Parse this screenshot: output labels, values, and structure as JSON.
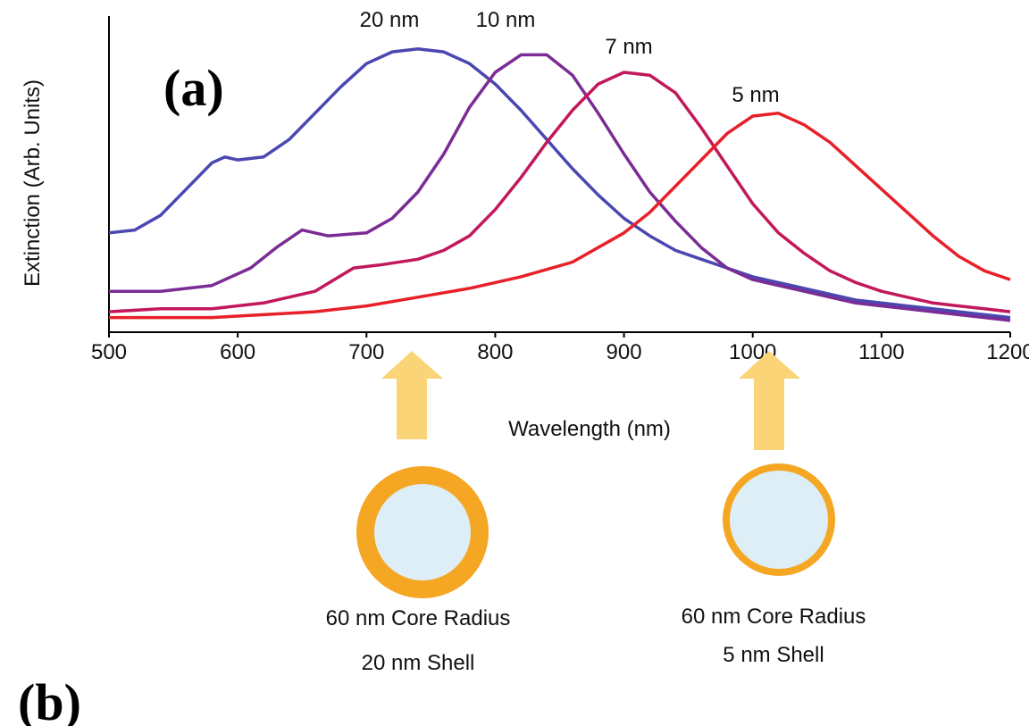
{
  "figure": {
    "panel_a_label": "(a)",
    "panel_b_label": "(b)",
    "arrow_color": "#FAD477",
    "shell_color": "#F5A623",
    "core_color": "#DDEEF7"
  },
  "chart_data": {
    "type": "line",
    "xlabel": "Wavelength (nm)",
    "ylabel": "Extinction (Arb. Units)",
    "xlim": [
      500,
      1200
    ],
    "ylim": [
      0,
      1
    ],
    "x_ticks": [
      500,
      600,
      700,
      800,
      900,
      1000,
      1100,
      1200
    ],
    "grid": false,
    "series": [
      {
        "name": "20 nm",
        "color": "#4A47B0",
        "x": [
          500,
          520,
          540,
          560,
          580,
          590,
          600,
          620,
          640,
          660,
          680,
          700,
          720,
          740,
          760,
          780,
          800,
          820,
          840,
          860,
          880,
          900,
          920,
          940,
          960,
          980,
          1000,
          1020,
          1040,
          1060,
          1080,
          1100,
          1120,
          1140,
          1160,
          1180,
          1200
        ],
        "y": [
          0.34,
          0.35,
          0.4,
          0.49,
          0.58,
          0.6,
          0.59,
          0.6,
          0.66,
          0.75,
          0.84,
          0.92,
          0.96,
          0.97,
          0.96,
          0.92,
          0.85,
          0.76,
          0.66,
          0.56,
          0.47,
          0.39,
          0.33,
          0.28,
          0.25,
          0.22,
          0.19,
          0.17,
          0.15,
          0.13,
          0.11,
          0.1,
          0.09,
          0.08,
          0.07,
          0.06,
          0.05
        ]
      },
      {
        "name": "10 nm",
        "color": "#7B2C94",
        "x": [
          500,
          540,
          580,
          610,
          630,
          650,
          670,
          700,
          720,
          740,
          760,
          780,
          800,
          820,
          840,
          860,
          880,
          900,
          920,
          940,
          960,
          980,
          1000,
          1020,
          1040,
          1060,
          1080,
          1100,
          1120,
          1140,
          1160,
          1180,
          1200
        ],
        "y": [
          0.14,
          0.14,
          0.16,
          0.22,
          0.29,
          0.35,
          0.33,
          0.34,
          0.39,
          0.48,
          0.61,
          0.77,
          0.89,
          0.95,
          0.95,
          0.88,
          0.75,
          0.61,
          0.48,
          0.38,
          0.29,
          0.22,
          0.18,
          0.16,
          0.14,
          0.12,
          0.1,
          0.09,
          0.08,
          0.07,
          0.06,
          0.05,
          0.04
        ]
      },
      {
        "name": "7 nm",
        "color": "#C2185B",
        "x": [
          500,
          540,
          580,
          620,
          660,
          690,
          710,
          740,
          760,
          780,
          800,
          820,
          840,
          860,
          880,
          900,
          920,
          940,
          960,
          980,
          1000,
          1020,
          1040,
          1060,
          1080,
          1100,
          1120,
          1140,
          1160,
          1180,
          1200
        ],
        "y": [
          0.07,
          0.08,
          0.08,
          0.1,
          0.14,
          0.22,
          0.23,
          0.25,
          0.28,
          0.33,
          0.42,
          0.53,
          0.65,
          0.76,
          0.85,
          0.89,
          0.88,
          0.82,
          0.7,
          0.57,
          0.44,
          0.34,
          0.27,
          0.21,
          0.17,
          0.14,
          0.12,
          0.1,
          0.09,
          0.08,
          0.07
        ]
      },
      {
        "name": "5 nm",
        "color": "#E8202A",
        "x": [
          500,
          540,
          580,
          620,
          660,
          700,
          740,
          780,
          820,
          860,
          880,
          900,
          920,
          940,
          960,
          980,
          1000,
          1020,
          1040,
          1060,
          1080,
          1100,
          1120,
          1140,
          1160,
          1180,
          1200
        ],
        "y": [
          0.05,
          0.05,
          0.05,
          0.06,
          0.07,
          0.09,
          0.12,
          0.15,
          0.19,
          0.24,
          0.29,
          0.34,
          0.41,
          0.5,
          0.59,
          0.68,
          0.74,
          0.75,
          0.71,
          0.65,
          0.57,
          0.49,
          0.41,
          0.33,
          0.26,
          0.21,
          0.18
        ]
      }
    ]
  },
  "particles": [
    {
      "caption_line1": "60 nm Core Radius",
      "caption_line2": "20 nm Shell",
      "points_to_wavelength": 750
    },
    {
      "caption_line1": "60 nm Core Radius",
      "caption_line2": "5 nm Shell",
      "points_to_wavelength": 1000
    }
  ]
}
